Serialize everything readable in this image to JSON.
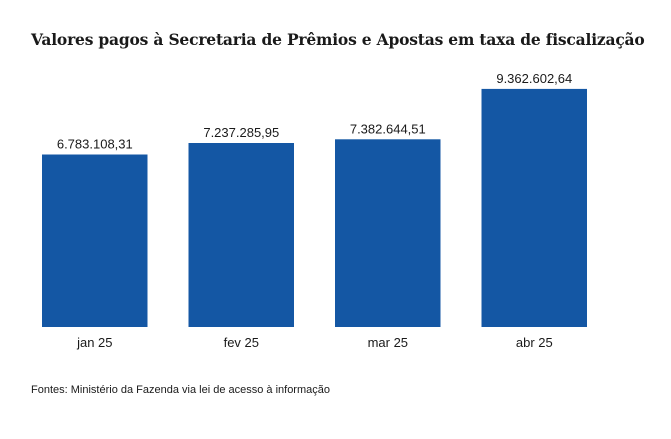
{
  "colors": {
    "bar": "#1457a4",
    "text": "#1a1a1a"
  },
  "chart_data": {
    "type": "bar",
    "title": "Valores pagos à Secretaria de Prêmios e Apostas em taxa de fiscalização",
    "xlabel": "",
    "ylabel": "",
    "categories": [
      "jan 25",
      "fev 25",
      "mar 25",
      "abr 25"
    ],
    "values": [
      6783108.31,
      7237285.95,
      7382644.51,
      9362602.64
    ],
    "value_labels": [
      "6.783.108,31",
      "7.237.285,95",
      "7.382.644,51",
      "9.362.602,64"
    ],
    "ylim": [
      0,
      10500000
    ],
    "grid": false,
    "legend": "none"
  },
  "footer": {
    "source": "Fontes: Ministério da Fazenda via lei de acesso à informação"
  }
}
